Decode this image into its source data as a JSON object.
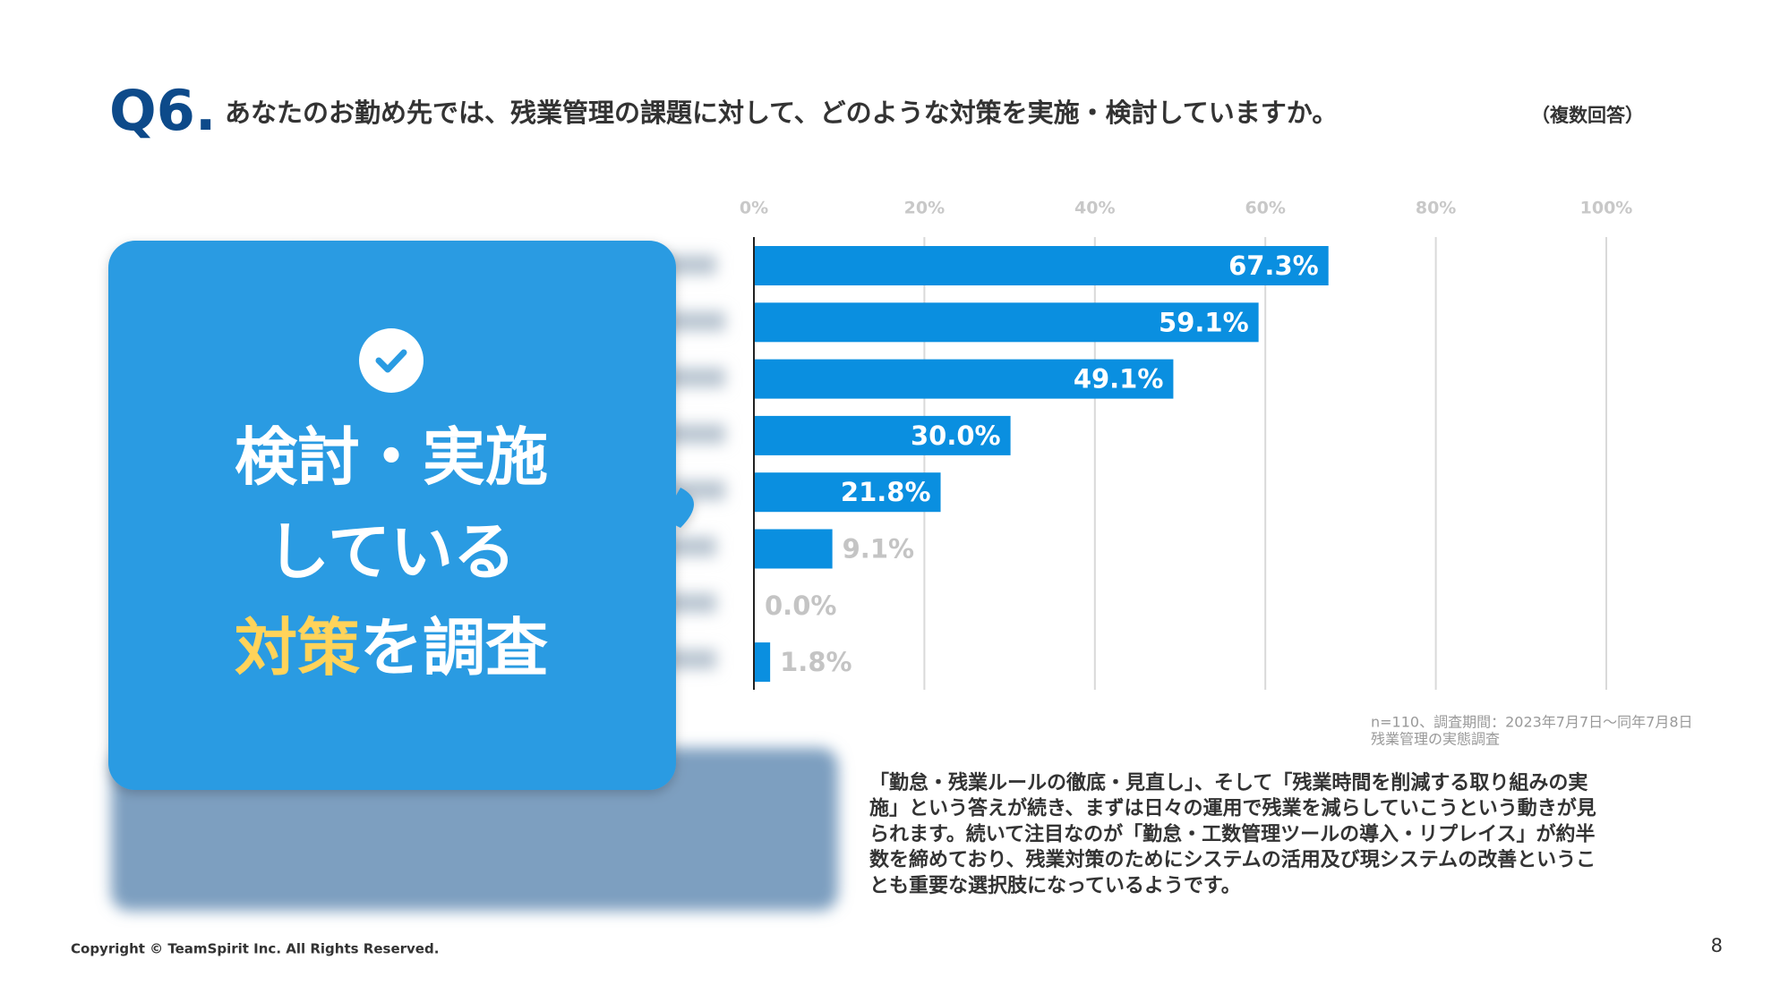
{
  "header": {
    "number": "Q6.",
    "question": "あなたのお勤め先では、残業管理の課題に対して、どのような対策を実施・検討していますか。",
    "note": "（複数回答）"
  },
  "callout": {
    "line1": "検討・実施",
    "line2": "している",
    "highlight": "対策",
    "line3_rest": "を調査"
  },
  "chart_data": {
    "type": "bar",
    "orientation": "horizontal",
    "color": "#0a8fe0",
    "categories": [
      null,
      null,
      null,
      null,
      null,
      null,
      null,
      null
    ],
    "values": [
      67.3,
      59.1,
      49.1,
      30.0,
      21.8,
      9.1,
      0.0,
      1.8
    ],
    "value_labels": [
      "67.3%",
      "59.1%",
      "49.1%",
      "30.0%",
      "21.8%",
      "9.1%",
      "0.0%",
      "1.8%"
    ],
    "xlim": [
      0,
      100
    ],
    "xticks": [
      {
        "value": 0,
        "label": "0%"
      },
      {
        "value": 20,
        "label": "20%"
      },
      {
        "value": 40,
        "label": "40%"
      },
      {
        "value": 60,
        "label": "60%"
      },
      {
        "value": 80,
        "label": "80%"
      },
      {
        "value": 100,
        "label": "100%"
      }
    ],
    "grid": true
  },
  "source": {
    "line1": "n=110、調査期間：2023年7月7日〜同年7月8日",
    "line2": "残業管理の実態調査"
  },
  "body": [
    "「勤怠・残業ルールの徹底・見直し」、そして「残業時間を削減する取り組みの実",
    "施」という答えが続き、まずは日々の運用で残業を減らしていこうという動きが見",
    "られます。続いて注目なのが「勤怠・工数管理ツールの導入・リプレイス」が約半",
    "数を締めており、残業対策のためにシステムの活用及び現システムの改善というこ",
    "とも重要な選択肢になっているようです。"
  ],
  "footer": {
    "copyright": "Copyright © TeamSpirit Inc. All Rights Reserved.",
    "page": "8"
  }
}
